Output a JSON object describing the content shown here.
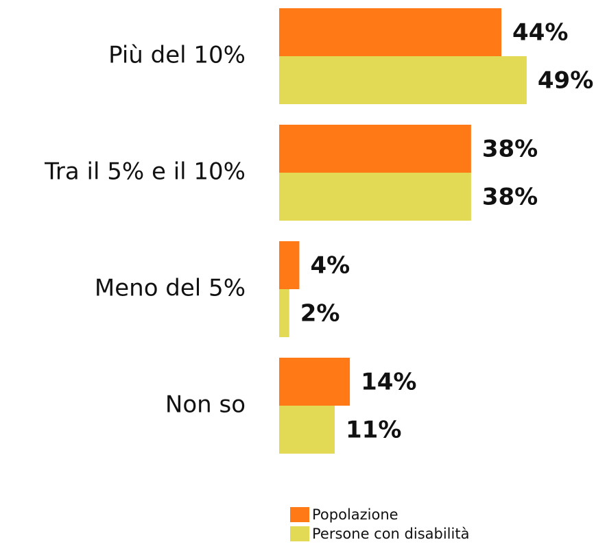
{
  "chart_data": {
    "type": "bar",
    "orientation": "horizontal",
    "categories": [
      "Più del 10%",
      "Tra il 5% e il 10%",
      "Meno del 5%",
      "Non so"
    ],
    "series": [
      {
        "name": "Popolazione",
        "color": "#ff7a16",
        "values": [
          44,
          38,
          4,
          14
        ],
        "value_labels": [
          "44%",
          "38%",
          "4%",
          "14%"
        ]
      },
      {
        "name": "Persone con disabilità",
        "color": "#e2d955",
        "values": [
          49,
          38,
          2,
          11
        ],
        "value_labels": [
          "49%",
          "38%",
          "2%",
          "11%"
        ]
      }
    ],
    "legend": "bottom"
  }
}
